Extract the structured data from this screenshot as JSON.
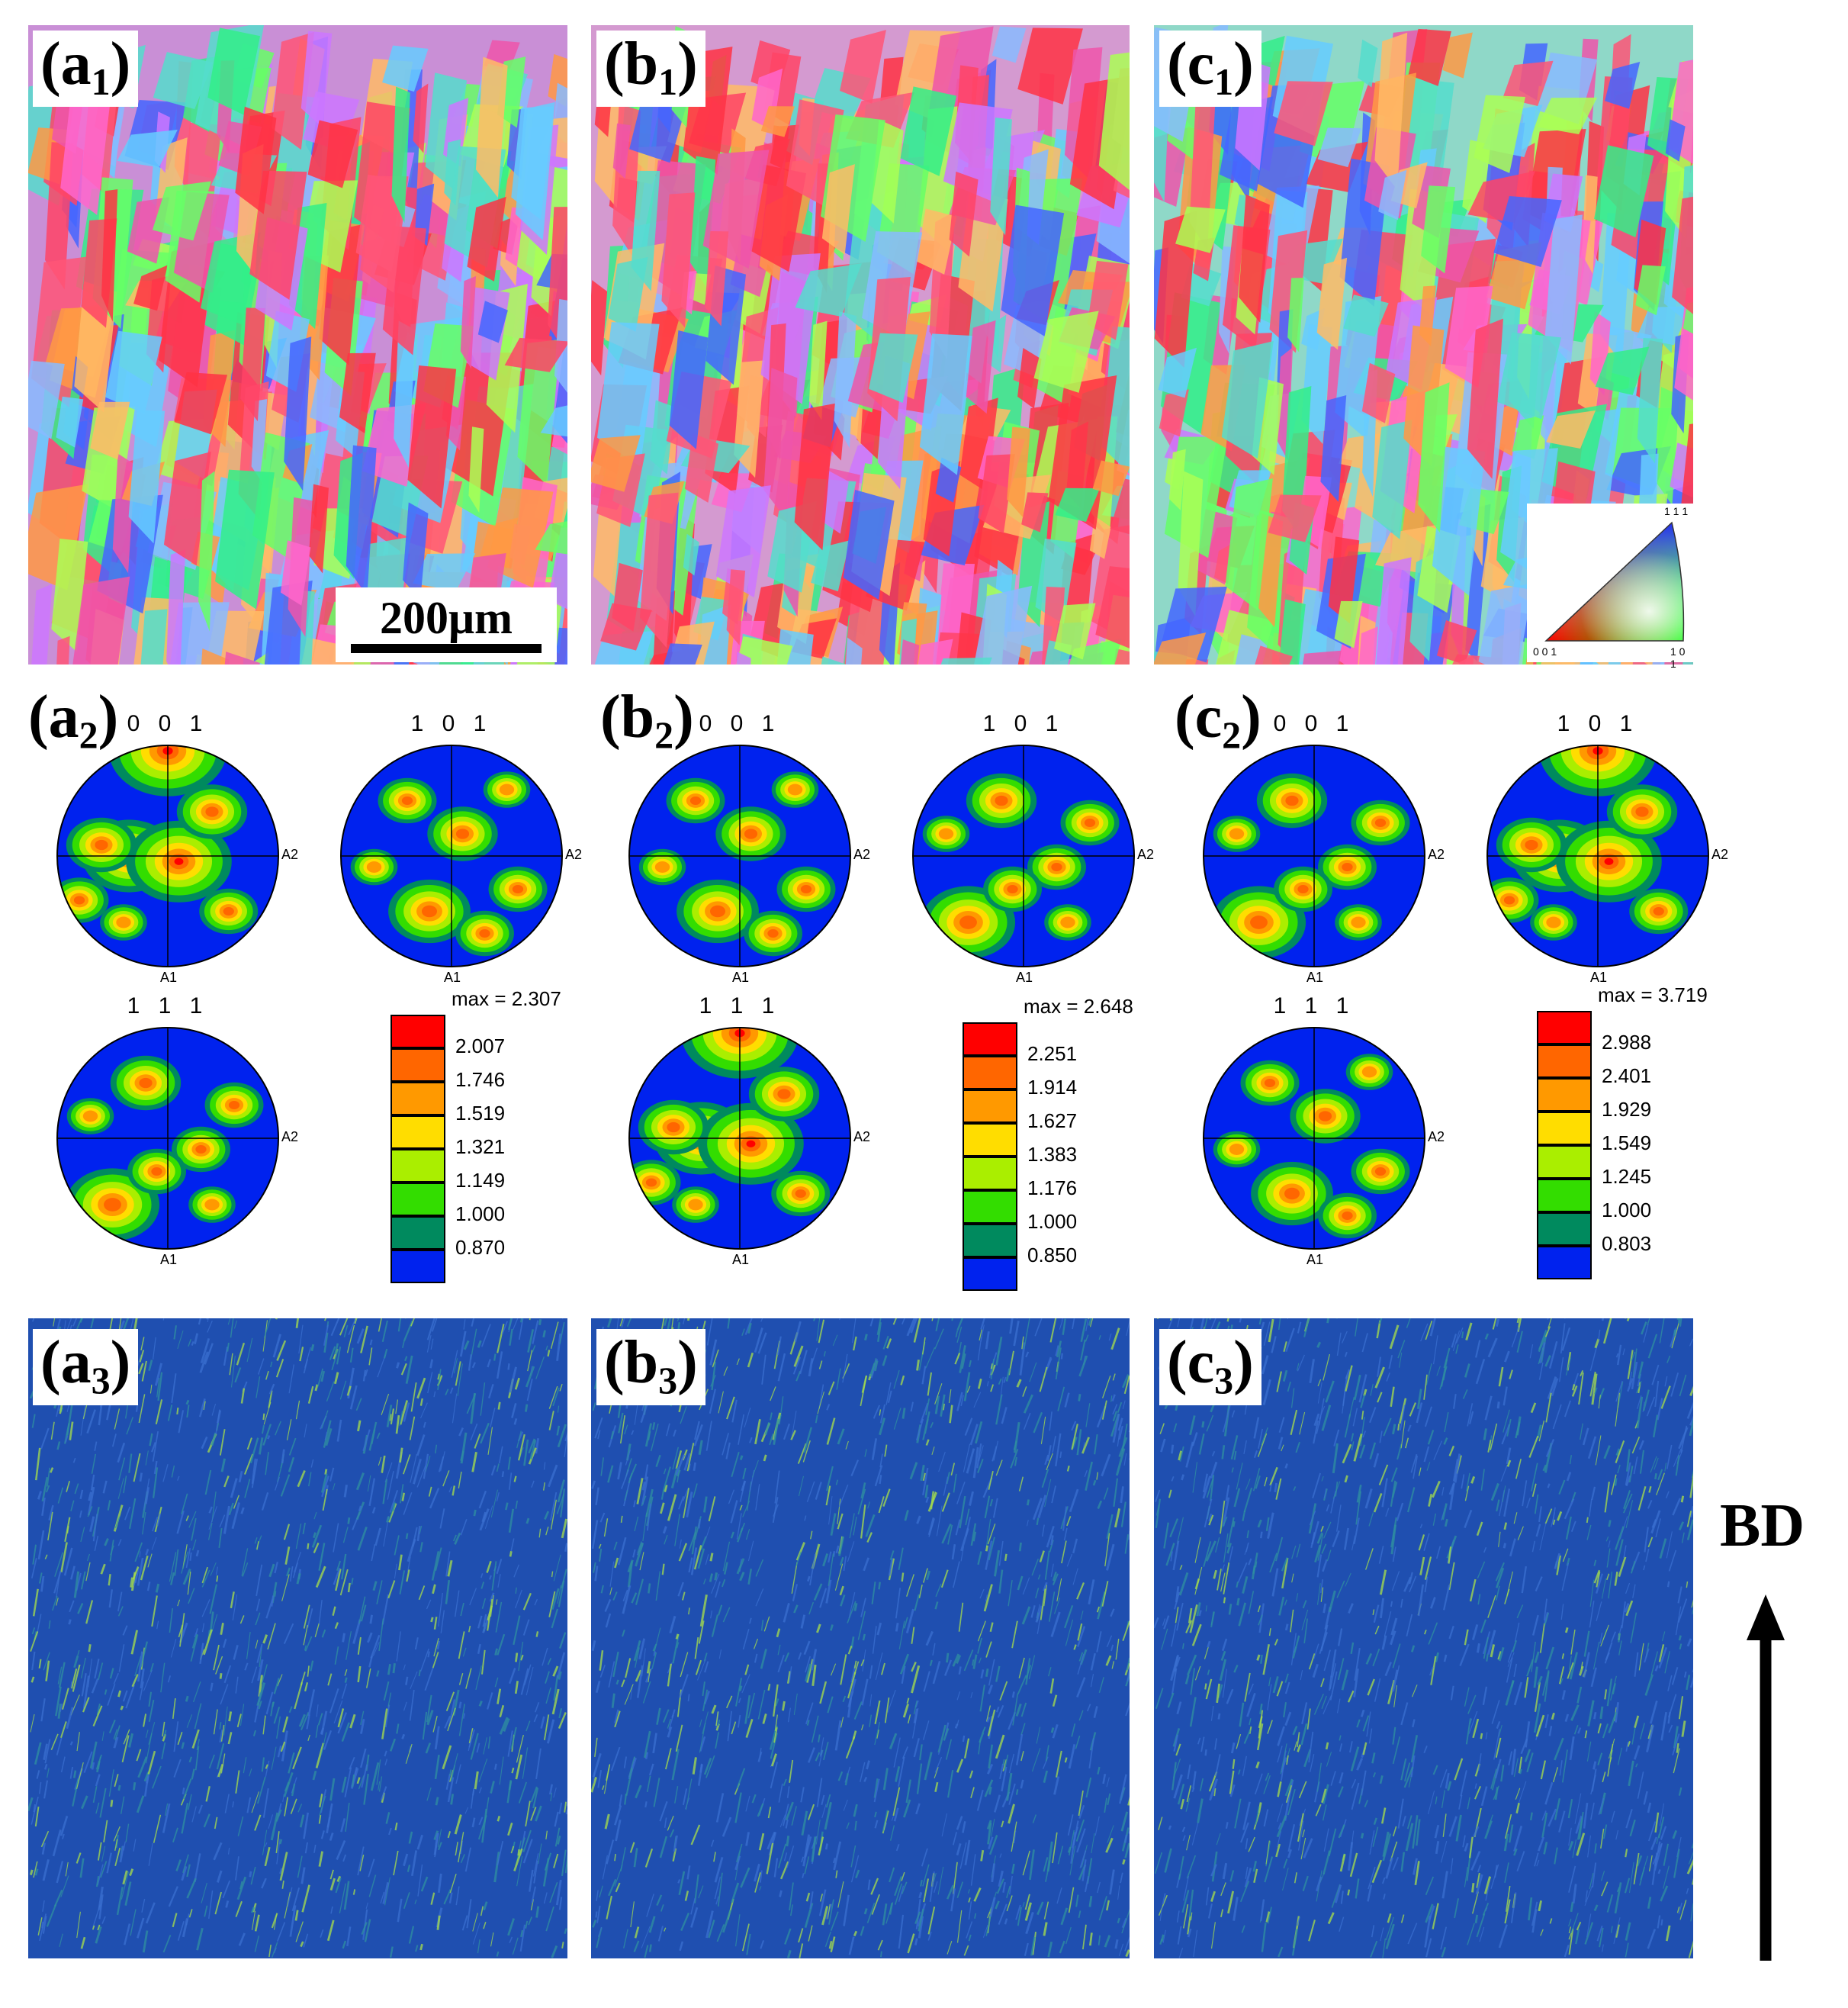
{
  "ipf_maps": [
    {
      "tag": "a",
      "sub": "1"
    },
    {
      "tag": "b",
      "sub": "1"
    },
    {
      "tag": "c",
      "sub": "1"
    }
  ],
  "kam_maps": [
    {
      "tag": "a",
      "sub": "3"
    },
    {
      "tag": "b",
      "sub": "3"
    },
    {
      "tag": "c",
      "sub": "3"
    }
  ],
  "scale_bar": "200μm",
  "ipf_key": {
    "top": "1 1 1",
    "left": "0 0 1",
    "right": "1 0 1"
  },
  "pole_figure_groups": [
    {
      "tag": "b",
      "sub": "2",
      "dummy": false
    }
  ],
  "pf_labels": {
    "p001": "0 0 1",
    "p101": "1 0 1",
    "p111": "1 1 1",
    "a1": "A1",
    "a2": "A2"
  },
  "pole_figures": [
    {
      "tag": "a",
      "sub": "2",
      "max": "max = 2.307",
      "levels": [
        "2.007",
        "1.746",
        "1.519",
        "1.321",
        "1.149",
        "1.000",
        "0.870"
      ]
    },
    {
      "tag": "b",
      "sub": "2",
      "max": "max = 2.648",
      "levels": [
        "2.251",
        "1.914",
        "1.627",
        "1.383",
        "1.176",
        "1.000",
        "0.850"
      ]
    },
    {
      "tag": "c",
      "sub": "2",
      "max": "max = 3.719",
      "levels": [
        "2.988",
        "2.401",
        "1.929",
        "1.549",
        "1.245",
        "1.000",
        "0.803"
      ]
    }
  ],
  "legend_colors": [
    "#ff0000",
    "#ff6600",
    "#ff9900",
    "#ffdd00",
    "#aaee00",
    "#33dd00",
    "#008a5e",
    "#0022ee"
  ],
  "build_direction": "BD"
}
